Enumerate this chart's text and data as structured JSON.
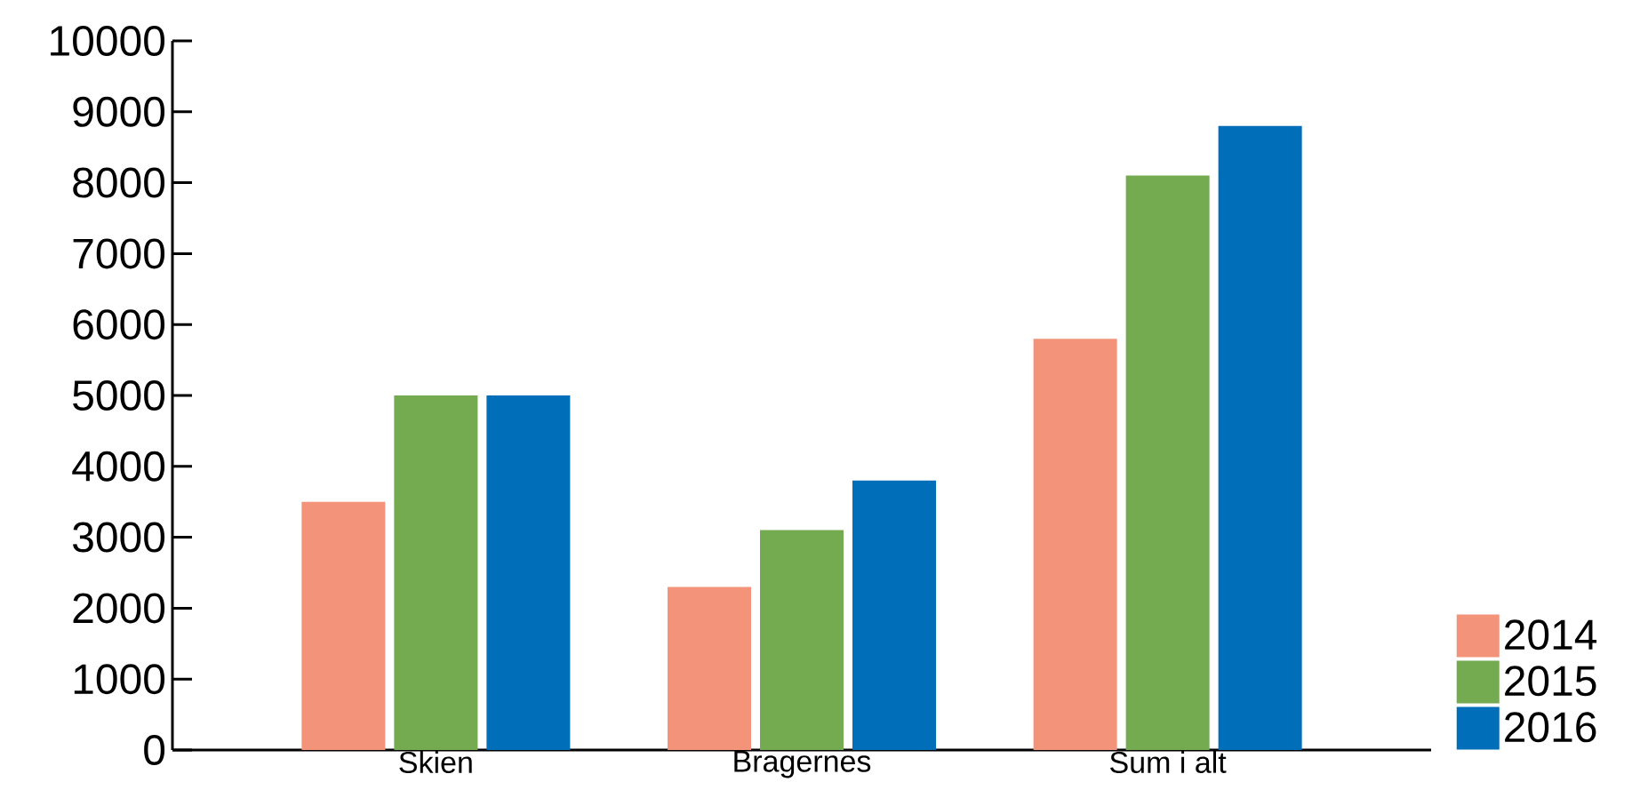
{
  "chart_data": {
    "type": "bar",
    "categories": [
      "Skien",
      "Bragernes",
      "Sum i alt"
    ],
    "series": [
      {
        "name": "2014",
        "color": "#f2937a",
        "values": [
          3500,
          2300,
          5800
        ]
      },
      {
        "name": "2015",
        "color": "#74aa50",
        "values": [
          5000,
          3100,
          8100
        ]
      },
      {
        "name": "2016",
        "color": "#006eb9",
        "values": [
          5000,
          3800,
          8800
        ]
      }
    ],
    "ylim": [
      0,
      10000
    ],
    "yticks": [
      0,
      1000,
      2000,
      3000,
      4000,
      5000,
      6000,
      7000,
      8000,
      9000,
      10000
    ],
    "grid": false,
    "legend": "bottom right"
  }
}
